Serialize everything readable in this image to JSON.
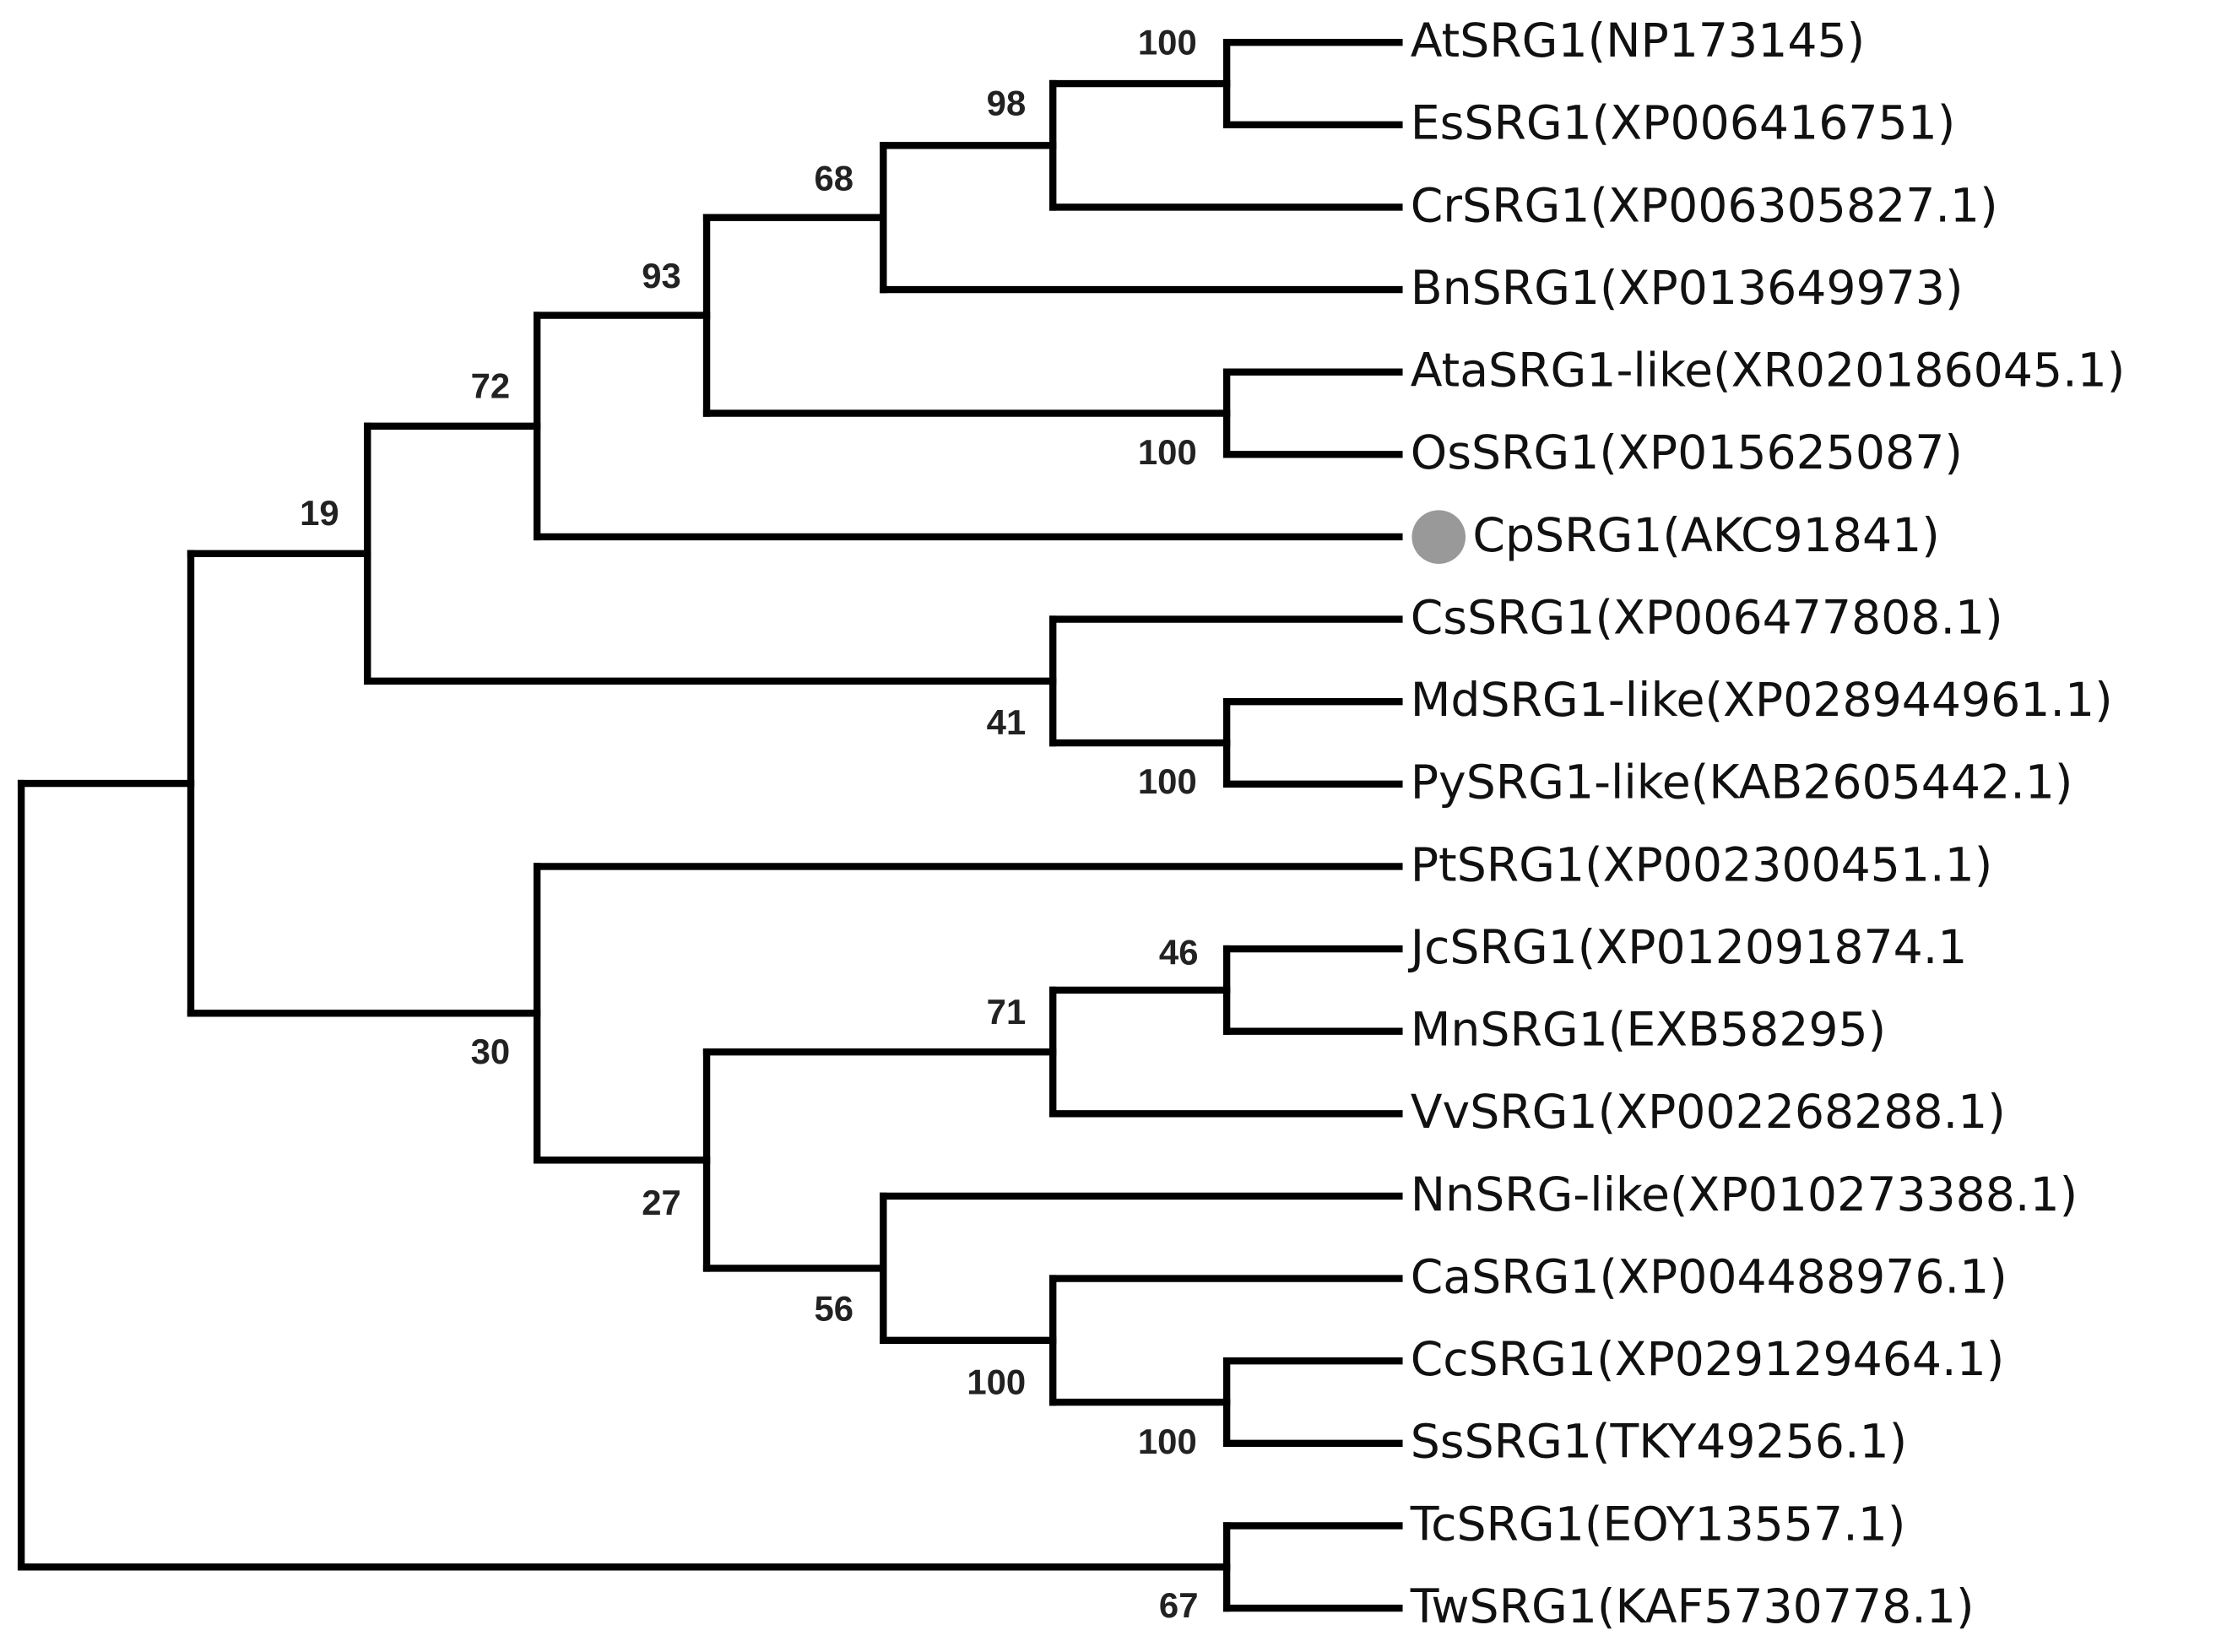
{
  "leaves": [
    {
      "label": "AtSRG1(NP173145)"
    },
    {
      "label": "EsSRG1(XP006416751)"
    },
    {
      "label": "CrSRG1(XP006305827.1)"
    },
    {
      "label": "BnSRG1(XP013649973)"
    },
    {
      "label": "AtaSRG1-like(XR020186045.1)"
    },
    {
      "label": "OsSRG1(XP015625087)"
    },
    {
      "label": "CpSRG1(AKC91841)"
    },
    {
      "label": "CsSRG1(XP006477808.1)"
    },
    {
      "label": "MdSRG1-like(XP028944961.1)"
    },
    {
      "label": "PySRG1-like(KAB2605442.1)"
    },
    {
      "label": "PtSRG1(XP002300451.1)"
    },
    {
      "label": "JcSRG1(XP012091874.1"
    },
    {
      "label": "MnSRG1(EXB58295)"
    },
    {
      "label": "VvSRG1(XP002268288.1)"
    },
    {
      "label": "NnSRG-like(XP010273388.1)"
    },
    {
      "label": "CaSRG1(XP004488976.1)"
    },
    {
      "label": "CcSRG1(XP029129464.1)"
    },
    {
      "label": "SsSRG1(TKY49256.1)"
    },
    {
      "label": "TcSRG1(EOY13557.1)"
    },
    {
      "label": "TwSRG1(KAF5730778.1)"
    }
  ],
  "nodes": [
    {
      "support": 100
    },
    {
      "support": 98
    },
    {
      "support": 68
    },
    {
      "support": 100
    },
    {
      "support": 93
    },
    {
      "support": 72
    },
    {
      "support": 100
    },
    {
      "support": 41
    },
    {
      "support": 19
    },
    {
      "support": 46
    },
    {
      "support": 71
    },
    {
      "support": 100
    },
    {
      "support": 100
    },
    {
      "support": 56
    },
    {
      "support": 27
    },
    {
      "support": 30
    },
    {
      "support": 67
    }
  ]
}
